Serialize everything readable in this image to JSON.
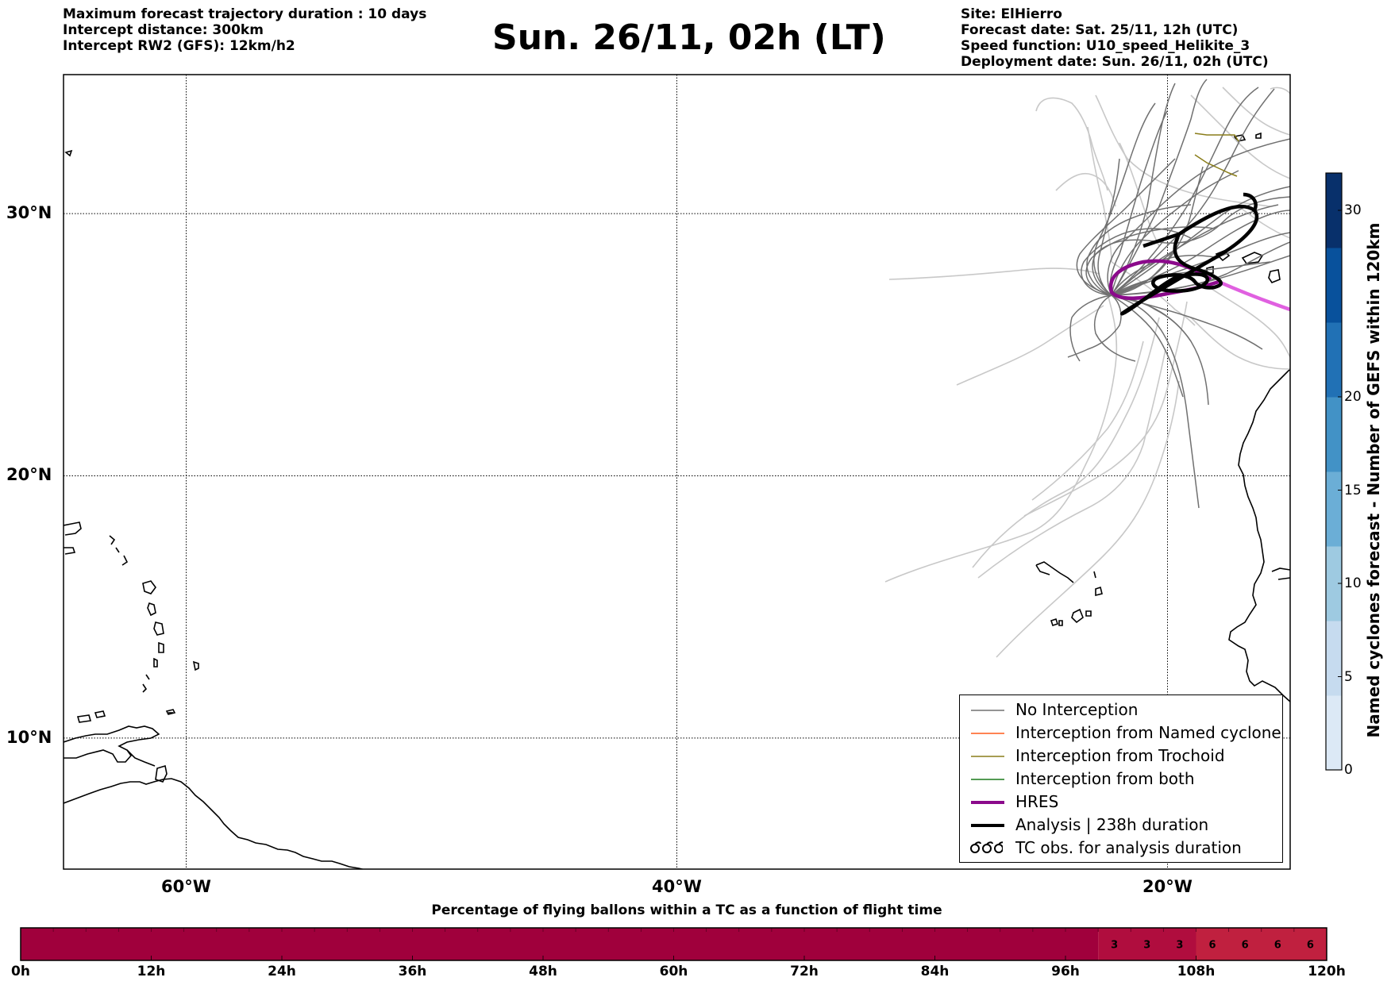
{
  "header": {
    "left_lines": [
      "Maximum forecast trajectory duration : 10 days",
      "Intercept distance: 300km",
      "Intercept RW2 (GFS):  12km/h2"
    ],
    "title": "Sun. 26/11, 02h (LT)",
    "right_lines": [
      "Site: ElHierro",
      "Forecast date: Sat. 25/11, 12h (UTC)",
      "Speed function: U10_speed_Helikite_3",
      "Deployment date: Sun. 26/11, 02h (UTC)"
    ]
  },
  "map": {
    "lon_range": [
      -65,
      -15
    ],
    "lat_range": [
      5,
      35.3
    ],
    "lat_labels": [
      {
        "lat": 30,
        "text": "30°N"
      },
      {
        "lat": 20,
        "text": "20°N"
      },
      {
        "lat": 10,
        "text": "10°N"
      }
    ],
    "lon_labels": [
      {
        "lon": -60,
        "text": "60°W"
      },
      {
        "lon": -40,
        "text": "40°W"
      },
      {
        "lon": -20,
        "text": "20°W"
      }
    ]
  },
  "legend": {
    "items": [
      {
        "label": "No Interception",
        "color": "#707070",
        "width": 1.5,
        "kind": "line"
      },
      {
        "label": "Interception from Named cyclone",
        "color": "#ff5a1a",
        "width": 1.5,
        "kind": "line"
      },
      {
        "label": "Interception from Trochoid",
        "color": "#8a7d1a",
        "width": 1.5,
        "kind": "line"
      },
      {
        "label": "Interception from both",
        "color": "#1a7a1a",
        "width": 1.5,
        "kind": "line"
      },
      {
        "label": "HRES",
        "color": "#8b0a8b",
        "width": 4,
        "kind": "line"
      },
      {
        "label": "Analysis | 238h duration",
        "color": "#000000",
        "width": 4,
        "kind": "line"
      },
      {
        "label": "TC obs. for analysis duration",
        "color": "#000000",
        "width": 2,
        "kind": "symbol"
      }
    ]
  },
  "colorbar": {
    "title": "Named cyclones forecast - Number of GEFS within 120km",
    "min": 0,
    "max": 32,
    "ticks": [
      0,
      5,
      10,
      15,
      20,
      30
    ],
    "colors": [
      "#dce9f6",
      "#c6dbef",
      "#9ecae1",
      "#6baed6",
      "#4292c6",
      "#2171b5",
      "#08519c",
      "#08306b"
    ]
  },
  "timebar": {
    "title": "Percentage of flying ballons within a TC as a function of flight time",
    "tick_labels": [
      "0h",
      "12h",
      "24h",
      "36h",
      "48h",
      "60h",
      "72h",
      "84h",
      "96h",
      "108h",
      "120h"
    ],
    "max_hours": 120,
    "step_hours": 3,
    "segments": [
      {
        "from_h": 0,
        "to_h": 99,
        "value": "",
        "color": "#a0003c"
      },
      {
        "from_h": 99,
        "to_h": 108,
        "value": "3",
        "color": "#b00d3e"
      },
      {
        "from_h": 108,
        "to_h": 120,
        "value": "6",
        "color": "#c0203f"
      }
    ]
  }
}
